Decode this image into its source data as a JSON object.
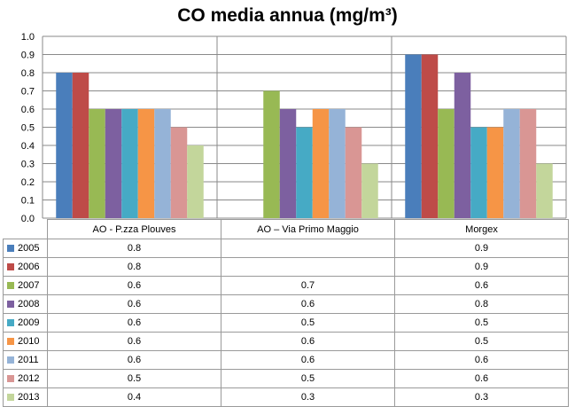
{
  "chart_data": {
    "type": "bar",
    "title": "CO media annua (mg/m³)",
    "categories": [
      "AO - P.zza Plouves",
      "AO – Via Primo Maggio",
      "Morgex"
    ],
    "ylim": [
      0.0,
      1.0
    ],
    "yticks": [
      "0.0",
      "0.1",
      "0.2",
      "0.3",
      "0.4",
      "0.5",
      "0.6",
      "0.7",
      "0.8",
      "0.9",
      "1.0"
    ],
    "grid": true,
    "legend": "data table below chart",
    "series": [
      {
        "name": "2005",
        "color": "#4a7ebb",
        "values": [
          0.8,
          null,
          0.9
        ],
        "labels": [
          "0.8",
          "",
          "0.9"
        ]
      },
      {
        "name": "2006",
        "color": "#be4b48",
        "values": [
          0.8,
          null,
          0.9
        ],
        "labels": [
          "0.8",
          "",
          "0.9"
        ]
      },
      {
        "name": "2007",
        "color": "#98b954",
        "values": [
          0.6,
          0.7,
          0.6
        ],
        "labels": [
          "0.6",
          "0.7",
          "0.6"
        ]
      },
      {
        "name": "2008",
        "color": "#7d60a0",
        "values": [
          0.6,
          0.6,
          0.8
        ],
        "labels": [
          "0.6",
          "0.6",
          "0.8"
        ]
      },
      {
        "name": "2009",
        "color": "#46aac5",
        "values": [
          0.6,
          0.5,
          0.5
        ],
        "labels": [
          "0.6",
          "0.5",
          "0.5"
        ]
      },
      {
        "name": "2010",
        "color": "#f69546",
        "values": [
          0.6,
          0.6,
          0.5
        ],
        "labels": [
          "0.6",
          "0.6",
          "0.5"
        ]
      },
      {
        "name": "2011",
        "color": "#95b3d7",
        "values": [
          0.6,
          0.6,
          0.6
        ],
        "labels": [
          "0.6",
          "0.6",
          "0.6"
        ]
      },
      {
        "name": "2012",
        "color": "#d99694",
        "values": [
          0.5,
          0.5,
          0.6
        ],
        "labels": [
          "0.5",
          "0.5",
          "0.6"
        ]
      },
      {
        "name": "2013",
        "color": "#c3d69b",
        "values": [
          0.4,
          0.3,
          0.3
        ],
        "labels": [
          "0.4",
          "0.3",
          "0.3"
        ]
      }
    ]
  }
}
